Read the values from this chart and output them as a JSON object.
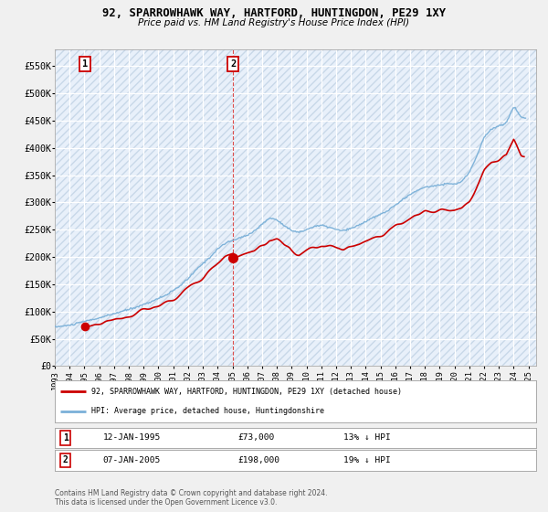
{
  "title": "92, SPARROWHAWK WAY, HARTFORD, HUNTINGDON, PE29 1XY",
  "subtitle": "Price paid vs. HM Land Registry's House Price Index (HPI)",
  "red_legend": "92, SPARROWHAWK WAY, HARTFORD, HUNTINGDON, PE29 1XY (detached house)",
  "blue_legend": "HPI: Average price, detached house, Huntingdonshire",
  "annotation1_date": "12-JAN-1995",
  "annotation1_price": "£73,000",
  "annotation1_hpi": "13% ↓ HPI",
  "annotation2_date": "07-JAN-2005",
  "annotation2_price": "£198,000",
  "annotation2_hpi": "19% ↓ HPI",
  "footer": "Contains HM Land Registry data © Crown copyright and database right 2024.\nThis data is licensed under the Open Government Licence v3.0.",
  "sale1_x": 1995.04,
  "sale1_y": 73000,
  "sale2_x": 2005.04,
  "sale2_y": 198000,
  "ylim": [
    0,
    580000
  ],
  "xlim_start": 1993.0,
  "xlim_end": 2025.5,
  "yticks": [
    0,
    50000,
    100000,
    150000,
    200000,
    250000,
    300000,
    350000,
    400000,
    450000,
    500000,
    550000
  ],
  "ytick_labels": [
    "£0",
    "£50K",
    "£100K",
    "£150K",
    "£200K",
    "£250K",
    "£300K",
    "£350K",
    "£400K",
    "£450K",
    "£500K",
    "£550K"
  ],
  "background_color": "#f0f0f0",
  "plot_bg_color": "#e8f0fa",
  "grid_color": "#ffffff",
  "red_color": "#cc0000",
  "blue_color": "#7ab0d8",
  "hatch_color": "#c8d8e8"
}
